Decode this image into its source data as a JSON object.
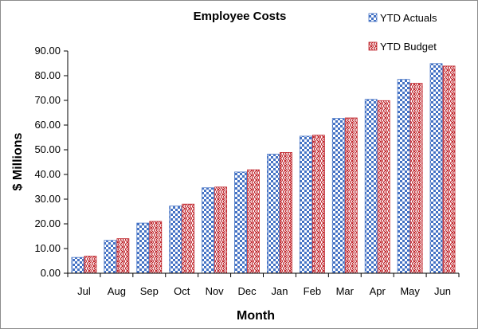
{
  "chart_data": {
    "type": "bar",
    "title": "Employee Costs",
    "xlabel": "Month",
    "ylabel": "$ Millions",
    "categories": [
      "Jul",
      "Aug",
      "Sep",
      "Oct",
      "Nov",
      "Dec",
      "Jan",
      "Feb",
      "Mar",
      "Apr",
      "May",
      "Jun"
    ],
    "series": [
      {
        "name": "YTD Actuals",
        "color": "#4472c4",
        "pattern": "checkerboard",
        "values": [
          6.4,
          13.3,
          20.3,
          27.2,
          34.6,
          41.0,
          48.2,
          55.5,
          62.7,
          70.4,
          78.5,
          84.9
        ]
      },
      {
        "name": "YTD Budget",
        "color": "#c0262d",
        "pattern": "weave",
        "values": [
          6.9,
          14.0,
          21.0,
          28.0,
          34.9,
          41.9,
          48.9,
          55.9,
          62.9,
          69.9,
          76.9,
          83.9
        ]
      }
    ],
    "ylim": [
      0,
      90
    ],
    "yticks": [
      "0.00",
      "10.00",
      "20.00",
      "30.00",
      "40.00",
      "50.00",
      "60.00",
      "70.00",
      "80.00",
      "90.00"
    ],
    "ytick_values": [
      0,
      10,
      20,
      30,
      40,
      50,
      60,
      70,
      80,
      90
    ],
    "grid": false,
    "legend_position": "top-right"
  }
}
